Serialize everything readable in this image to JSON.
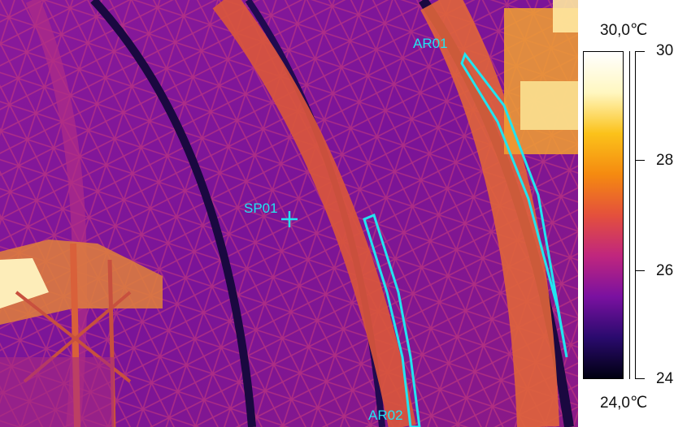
{
  "thermal_image": {
    "spot": {
      "label": "SP01"
    },
    "areas": [
      {
        "label": "AR01"
      },
      {
        "label": "AR02"
      }
    ],
    "overlay_color": "#22e4f0"
  },
  "scale": {
    "max_label": "30,0℃",
    "min_label": "24,0℃",
    "ticks": [
      "30",
      "28",
      "26",
      "24"
    ],
    "palette": [
      "#000010",
      "#2a0a6e",
      "#7a11a0",
      "#c0267e",
      "#e4503c",
      "#f58a10",
      "#fbc21a",
      "#fff7c0",
      "#ffffff"
    ]
  }
}
